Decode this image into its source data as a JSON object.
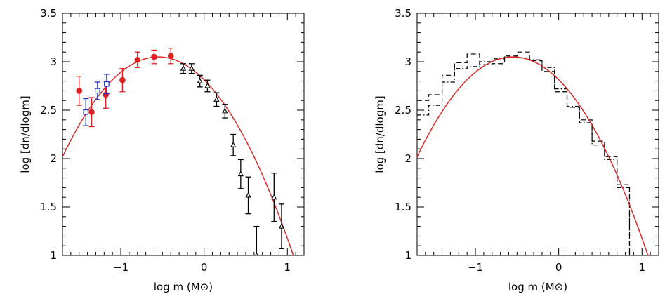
{
  "chart_data": [
    {
      "type": "scatter",
      "title": "",
      "xlabel": "log m (M⊙)",
      "ylabel": "log [dn/dlogm]",
      "xlim": [
        -1.7,
        1.2
      ],
      "ylim": [
        1,
        3.5
      ],
      "x_ticks": [
        -1,
        0,
        1
      ],
      "y_ticks": [
        1,
        1.5,
        2,
        2.5,
        3,
        3.5
      ],
      "y_tick_labels": [
        "1",
        "1.5",
        "2",
        "2.5",
        "3",
        "3.5"
      ],
      "series": [
        {
          "name": "red circles",
          "marker": "filled-circle",
          "color": "#e02020",
          "points": [
            {
              "x": -1.5,
              "y": 2.7,
              "err": 0.15
            },
            {
              "x": -1.35,
              "y": 2.48,
              "err": 0.15
            },
            {
              "x": -1.18,
              "y": 2.66,
              "err": 0.14
            },
            {
              "x": -0.98,
              "y": 2.81,
              "err": 0.12
            },
            {
              "x": -0.8,
              "y": 3.02,
              "err": 0.08
            },
            {
              "x": -0.6,
              "y": 3.05,
              "err": 0.07
            },
            {
              "x": -0.4,
              "y": 3.06,
              "err": 0.08
            }
          ]
        },
        {
          "name": "blue squares",
          "marker": "open-square",
          "color": "#2030d0",
          "points": [
            {
              "x": -1.42,
              "y": 2.48,
              "err": 0.14
            },
            {
              "x": -1.28,
              "y": 2.7,
              "err": 0.09
            },
            {
              "x": -1.17,
              "y": 2.77,
              "err": 0.1
            }
          ]
        },
        {
          "name": "black triangles",
          "marker": "open-triangle",
          "color": "#000000",
          "points": [
            {
              "x": -0.25,
              "y": 2.93,
              "err": 0.05
            },
            {
              "x": -0.15,
              "y": 2.93,
              "err": 0.05
            },
            {
              "x": -0.05,
              "y": 2.8,
              "err": 0.06
            },
            {
              "x": 0.04,
              "y": 2.75,
              "err": 0.06
            },
            {
              "x": 0.15,
              "y": 2.61,
              "err": 0.07
            },
            {
              "x": 0.25,
              "y": 2.49,
              "err": 0.07
            },
            {
              "x": 0.35,
              "y": 2.14,
              "err": 0.11
            },
            {
              "x": 0.44,
              "y": 1.84,
              "err": 0.15
            },
            {
              "x": 0.53,
              "y": 1.62,
              "err": 0.19
            },
            {
              "x": 0.63,
              "y": 1.0,
              "err": 0.3
            },
            {
              "x": 0.84,
              "y": 1.6,
              "err": 0.25
            },
            {
              "x": 0.93,
              "y": 1.3,
              "err": 0.23
            }
          ]
        }
      ],
      "fit": {
        "name": "log-normal fit",
        "color": "#e02020",
        "peak_x": -0.55,
        "peak_y": 3.05,
        "curvature": 0.78
      }
    },
    {
      "type": "histogram",
      "title": "",
      "xlabel": "log m (M⊙)",
      "ylabel": "log [dn/dlogm]",
      "xlim": [
        -1.7,
        1.2
      ],
      "ylim": [
        1,
        3.5
      ],
      "x_ticks": [
        -1,
        0,
        1
      ],
      "y_ticks": [
        1,
        1.5,
        2,
        2.5,
        3,
        3.5
      ],
      "y_tick_labels": [
        "1",
        "1.5",
        "2",
        "2.5",
        "3",
        "3.5"
      ],
      "histograms": [
        {
          "name": "histogram A (dashed)",
          "style": "dashed",
          "bin_edges": [
            -1.7,
            -1.56,
            -1.4,
            -1.25,
            -1.1,
            -0.95,
            -0.8,
            -0.65,
            -0.5,
            -0.35,
            -0.2,
            -0.05,
            0.1,
            0.25,
            0.4,
            0.55,
            0.7,
            0.85
          ],
          "values": [
            2.6,
            2.66,
            2.86,
            2.99,
            3.08,
            2.97,
            2.98,
            3.06,
            3.1,
            3.01,
            2.9,
            2.69,
            2.53,
            2.4,
            2.18,
            2.02,
            1.73
          ]
        },
        {
          "name": "histogram B (dot-dashed)",
          "style": "dotdash",
          "bin_edges": [
            -1.7,
            -1.56,
            -1.4,
            -1.25,
            -1.1,
            -0.95,
            -0.8,
            -0.65,
            -0.5,
            -0.35,
            -0.2,
            -0.05,
            0.1,
            0.25,
            0.4,
            0.55,
            0.7,
            0.85
          ],
          "values": [
            2.45,
            2.55,
            2.79,
            2.93,
            2.95,
            3.0,
            3.03,
            3.05,
            3.04,
            3.02,
            2.94,
            2.72,
            2.54,
            2.37,
            2.14,
            1.99,
            1.7
          ]
        }
      ],
      "fit": {
        "name": "log-normal fit",
        "color": "#e02020",
        "peak_x": -0.55,
        "peak_y": 3.05,
        "curvature": 0.78
      }
    }
  ]
}
